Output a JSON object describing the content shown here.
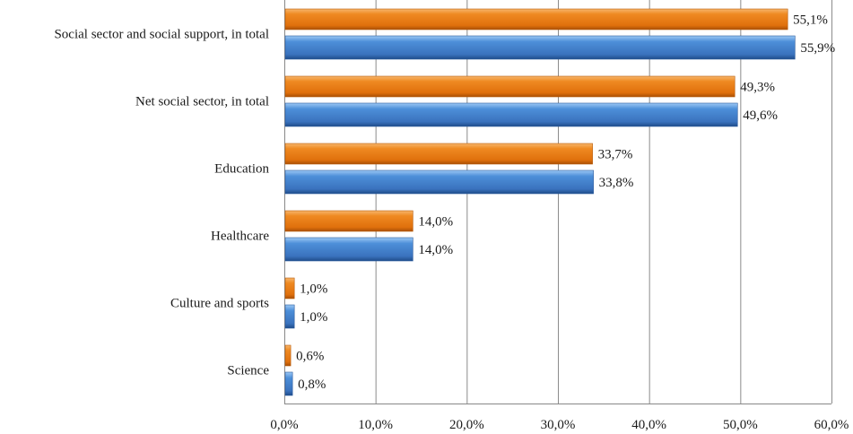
{
  "chart_data": {
    "type": "bar",
    "orientation": "horizontal",
    "title": "",
    "xlabel": "",
    "ylabel": "",
    "categories": [
      "Social sector and social  support, in total",
      "Net social sector, in total",
      "Education",
      "Healthcare",
      "Culture and sports",
      "Science"
    ],
    "series": [
      {
        "name": "Series 1",
        "color": "#e8760f",
        "values": [
          55.1,
          49.3,
          33.7,
          14.0,
          1.0,
          0.6
        ],
        "labels": [
          "55,1%",
          "49,3%",
          "33,7%",
          "14,0%",
          "1,0%",
          "0,6%"
        ]
      },
      {
        "name": "Series 2",
        "color": "#3d7cc9",
        "values": [
          55.9,
          49.6,
          33.8,
          14.0,
          1.0,
          0.8
        ],
        "labels": [
          "55,9%",
          "49,6%",
          "33,8%",
          "14,0%",
          "1,0%",
          "0,8%"
        ]
      }
    ],
    "xlim": [
      0,
      60
    ],
    "xticks": [
      0,
      10,
      20,
      30,
      40,
      50,
      60
    ],
    "xtick_labels": [
      "0,0%",
      "10,0%",
      "20,0%",
      "30,0%",
      "40,0%",
      "50,0%",
      "60,0%"
    ],
    "grid": true,
    "legend": "none"
  }
}
